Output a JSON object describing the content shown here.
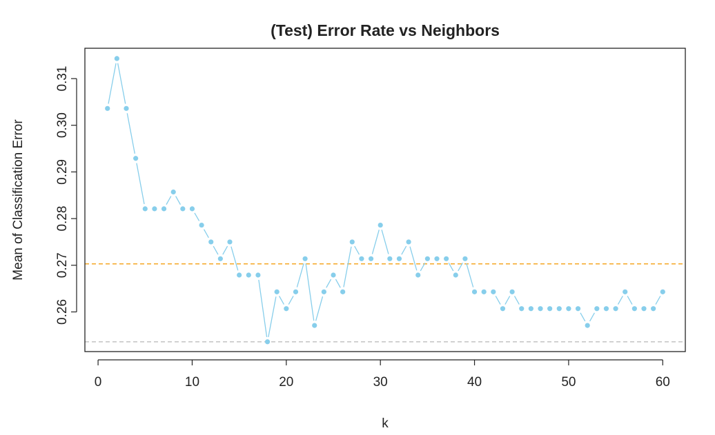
{
  "chart_data": {
    "type": "line",
    "title": "(Test) Error Rate vs Neighbors",
    "xlabel": "k",
    "ylabel": "Mean of Classification Error",
    "xlim": [
      -1.4,
      62.4
    ],
    "ylim": [
      0.2515,
      0.3165
    ],
    "xticks": [
      0,
      10,
      20,
      30,
      40,
      50,
      60
    ],
    "yticks": [
      0.26,
      0.27,
      0.28,
      0.29,
      0.3,
      0.31
    ],
    "ytick_labels": [
      "0.26",
      "0.27",
      "0.28",
      "0.29",
      "0.30",
      "0.31"
    ],
    "grid": false,
    "series": [
      {
        "x": [
          1,
          2,
          3,
          4,
          5,
          6,
          7,
          8,
          9,
          10,
          11,
          12,
          13,
          14,
          15,
          16,
          17,
          18,
          19,
          20,
          21,
          22,
          23,
          24,
          25,
          26,
          27,
          28,
          29,
          30,
          31,
          32,
          33,
          34,
          35,
          36,
          37,
          38,
          39,
          40,
          41,
          42,
          43,
          44,
          45,
          46,
          47,
          48,
          49,
          50,
          51,
          52,
          53,
          54,
          55,
          56,
          57,
          58,
          59,
          60
        ],
        "values": [
          0.3036,
          0.3143,
          0.3036,
          0.2929,
          0.2821,
          0.2821,
          0.2821,
          0.2857,
          0.2821,
          0.2821,
          0.2786,
          0.275,
          0.2714,
          0.275,
          0.2679,
          0.2679,
          0.2679,
          0.2536,
          0.2643,
          0.2607,
          0.2643,
          0.2714,
          0.2571,
          0.2643,
          0.2679,
          0.2643,
          0.275,
          0.2714,
          0.2714,
          0.2786,
          0.2714,
          0.2714,
          0.275,
          0.2679,
          0.2714,
          0.2714,
          0.2714,
          0.2679,
          0.2714,
          0.2643,
          0.2643,
          0.2643,
          0.2607,
          0.2643,
          0.2607,
          0.2607,
          0.2607,
          0.2607,
          0.2607,
          0.2607,
          0.2607,
          0.2571,
          0.2607,
          0.2607,
          0.2607,
          0.2643,
          0.2607,
          0.2607,
          0.2607,
          0.2643
        ],
        "color": "#87CEEB"
      }
    ],
    "reference_lines": [
      {
        "y": 0.2703,
        "color": "#F5A623",
        "style": "dashed"
      },
      {
        "y": 0.2536,
        "color": "#BEBEBE",
        "style": "dashed"
      }
    ]
  }
}
